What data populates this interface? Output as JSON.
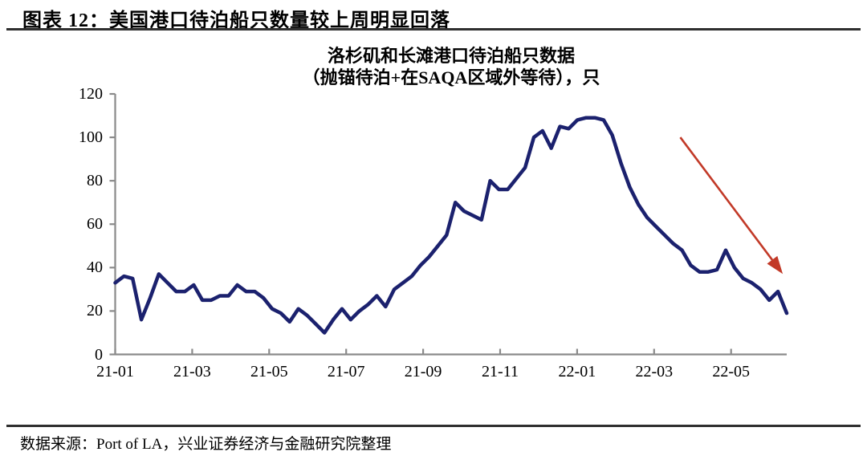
{
  "header": {
    "title": "图表 12：美国港口待泊船只数量较上周明显回落"
  },
  "footer": {
    "source": "数据来源：Port of LA，兴业证券经济与金融研究院整理"
  },
  "colors": {
    "line": "#1b216e",
    "arrow": "#c23a28",
    "axis": "#8a8a8a",
    "text": "#000000",
    "rule": "#2f2f2f",
    "background": "#ffffff"
  },
  "chart_data": {
    "type": "line",
    "title": "洛杉矶和长滩港口待泊船只数据（抛锚待泊+在SAQA区域外等待），只",
    "title_line1": "洛杉矶和长滩港口待泊船只数据",
    "title_line2": "（抛锚待泊+在SAQA区域外等待），只",
    "frequency": "weekly",
    "x_tick_labels": [
      "21-01",
      "21-03",
      "21-05",
      "21-07",
      "21-09",
      "21-11",
      "22-01",
      "22-03",
      "22-05"
    ],
    "y_ticks": [
      0,
      20,
      40,
      60,
      80,
      100,
      120
    ],
    "ylim": [
      0,
      120
    ],
    "grid": false,
    "legend": "none",
    "series": [
      {
        "name": "洛杉矶和长滩港口待泊船只数（抛锚待泊+在SAQA区域外等待），只",
        "values": [
          33,
          36,
          35,
          16,
          26,
          37,
          33,
          29,
          29,
          32,
          25,
          25,
          27,
          27,
          32,
          29,
          29,
          26,
          21,
          19,
          15,
          21,
          18,
          14,
          10,
          16,
          21,
          16,
          20,
          23,
          27,
          22,
          30,
          33,
          36,
          41,
          45,
          50,
          55,
          70,
          66,
          64,
          62,
          80,
          76,
          76,
          81,
          86,
          100,
          103,
          95,
          105,
          104,
          108,
          109,
          109,
          108,
          101,
          88,
          77,
          69,
          63,
          59,
          55,
          51,
          48,
          41,
          38,
          38,
          39,
          48,
          40,
          35,
          33,
          30,
          25,
          29,
          19
        ]
      }
    ],
    "annotation_arrow": {
      "description": "红色下行箭头，指示待泊船只数量明显回落",
      "from": {
        "week_index": 64.8,
        "value": 100
      },
      "to": {
        "week_index": 76.0,
        "value": 40
      }
    }
  }
}
